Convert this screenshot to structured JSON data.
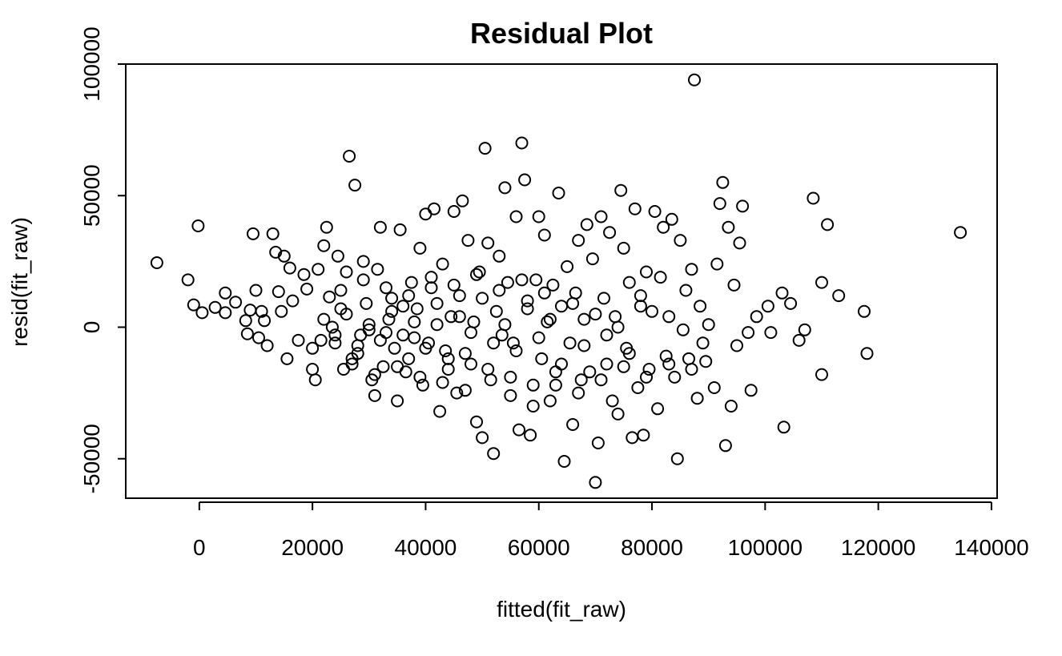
{
  "chart_data": {
    "type": "scatter",
    "title": "Residual Plot",
    "xlabel": "fitted(fit_raw)",
    "ylabel": "resid(fit_raw)",
    "xlim": [
      -13000,
      141000
    ],
    "ylim": [
      -65000,
      100000
    ],
    "xticks": [
      0,
      20000,
      40000,
      60000,
      80000,
      100000,
      120000,
      140000
    ],
    "xtick_labels": [
      "0",
      "20000",
      "40000",
      "60000",
      "80000",
      "100000",
      "120000",
      "140000"
    ],
    "yticks": [
      -50000,
      0,
      50000,
      100000
    ],
    "ytick_labels": [
      "-50000",
      "0",
      "50000",
      "100000"
    ],
    "grid": false,
    "marker": "open-circle",
    "points": [
      [
        -7500,
        24500
      ],
      [
        -2000,
        18000
      ],
      [
        -1000,
        8500
      ],
      [
        -200,
        38500
      ],
      [
        500,
        5500
      ],
      [
        2800,
        7500
      ],
      [
        4600,
        13000
      ],
      [
        4600,
        5500
      ],
      [
        6400,
        9500
      ],
      [
        8200,
        2500
      ],
      [
        8500,
        -2500
      ],
      [
        9000,
        6500
      ],
      [
        9500,
        35500
      ],
      [
        10000,
        14000
      ],
      [
        10500,
        -4000
      ],
      [
        11000,
        6000
      ],
      [
        11500,
        2500
      ],
      [
        12000,
        -7000
      ],
      [
        13000,
        35500
      ],
      [
        13500,
        28500
      ],
      [
        14000,
        13500
      ],
      [
        14500,
        6000
      ],
      [
        15000,
        27000
      ],
      [
        15500,
        -12000
      ],
      [
        16000,
        22500
      ],
      [
        16500,
        10000
      ],
      [
        17500,
        -5000
      ],
      [
        18500,
        20000
      ],
      [
        19000,
        14500
      ],
      [
        20000,
        -16000
      ],
      [
        20500,
        -20000
      ],
      [
        21000,
        22000
      ],
      [
        21500,
        -5000
      ],
      [
        22000,
        31000
      ],
      [
        22500,
        38000
      ],
      [
        23000,
        11500
      ],
      [
        23500,
        0
      ],
      [
        24000,
        -3000
      ],
      [
        24500,
        27000
      ],
      [
        25000,
        7000
      ],
      [
        25500,
        -16000
      ],
      [
        26000,
        21000
      ],
      [
        26500,
        65000
      ],
      [
        27000,
        -12000
      ],
      [
        27500,
        54000
      ],
      [
        28000,
        -7000
      ],
      [
        28500,
        -3000
      ],
      [
        29000,
        25000
      ],
      [
        29500,
        9000
      ],
      [
        30000,
        1000
      ],
      [
        30500,
        -20000
      ],
      [
        31000,
        -26000
      ],
      [
        31500,
        22000
      ],
      [
        32000,
        38000
      ],
      [
        32500,
        -15000
      ],
      [
        33000,
        -2000
      ],
      [
        33500,
        3000
      ],
      [
        34000,
        11000
      ],
      [
        34500,
        -8000
      ],
      [
        35000,
        -28000
      ],
      [
        35500,
        37000
      ],
      [
        36000,
        8000
      ],
      [
        36500,
        -17000
      ],
      [
        37000,
        -12000
      ],
      [
        37500,
        17000
      ],
      [
        38000,
        -4000
      ],
      [
        38500,
        7000
      ],
      [
        39000,
        30000
      ],
      [
        39500,
        -22000
      ],
      [
        40000,
        43000
      ],
      [
        40500,
        -6000
      ],
      [
        41000,
        15000
      ],
      [
        41500,
        45000
      ],
      [
        42000,
        1000
      ],
      [
        42500,
        -32000
      ],
      [
        43000,
        24000
      ],
      [
        43500,
        -9000
      ],
      [
        44000,
        -16000
      ],
      [
        44500,
        4000
      ],
      [
        45000,
        44000
      ],
      [
        45500,
        -25000
      ],
      [
        46000,
        12000
      ],
      [
        46500,
        48000
      ],
      [
        47000,
        -10000
      ],
      [
        47500,
        33000
      ],
      [
        48000,
        -14000
      ],
      [
        48500,
        2000
      ],
      [
        49000,
        -36000
      ],
      [
        49500,
        21000
      ],
      [
        50000,
        -42000
      ],
      [
        50500,
        68000
      ],
      [
        51000,
        32000
      ],
      [
        51500,
        -20000
      ],
      [
        52000,
        -48000
      ],
      [
        52500,
        6000
      ],
      [
        53000,
        27000
      ],
      [
        53500,
        -3000
      ],
      [
        54000,
        53000
      ],
      [
        54500,
        17000
      ],
      [
        55000,
        -26000
      ],
      [
        55500,
        -6000
      ],
      [
        56000,
        42000
      ],
      [
        56500,
        -39000
      ],
      [
        57000,
        70000
      ],
      [
        57500,
        56000
      ],
      [
        58000,
        10000
      ],
      [
        58500,
        -41000
      ],
      [
        59000,
        -30000
      ],
      [
        59500,
        18000
      ],
      [
        60000,
        42000
      ],
      [
        60500,
        -12000
      ],
      [
        61000,
        35000
      ],
      [
        61500,
        2000
      ],
      [
        62000,
        -28000
      ],
      [
        62500,
        16000
      ],
      [
        63000,
        -22000
      ],
      [
        63500,
        51000
      ],
      [
        64000,
        8000
      ],
      [
        64500,
        -51000
      ],
      [
        65000,
        23000
      ],
      [
        65500,
        -6000
      ],
      [
        66000,
        -37000
      ],
      [
        66500,
        13000
      ],
      [
        67000,
        33000
      ],
      [
        67500,
        -20000
      ],
      [
        68000,
        3000
      ],
      [
        68500,
        39000
      ],
      [
        69000,
        -17000
      ],
      [
        69500,
        26000
      ],
      [
        70000,
        -59000
      ],
      [
        70500,
        -44000
      ],
      [
        71000,
        42000
      ],
      [
        71500,
        11000
      ],
      [
        72000,
        -14000
      ],
      [
        72500,
        36000
      ],
      [
        73000,
        -28000
      ],
      [
        73500,
        4000
      ],
      [
        74000,
        -33000
      ],
      [
        74500,
        52000
      ],
      [
        75000,
        30000
      ],
      [
        75500,
        -8000
      ],
      [
        76000,
        17000
      ],
      [
        76500,
        -42000
      ],
      [
        77000,
        45000
      ],
      [
        77500,
        -23000
      ],
      [
        78000,
        8000
      ],
      [
        78500,
        -41000
      ],
      [
        79000,
        21000
      ],
      [
        79500,
        -16000
      ],
      [
        80000,
        6000
      ],
      [
        80500,
        44000
      ],
      [
        81000,
        -31000
      ],
      [
        81500,
        19000
      ],
      [
        82000,
        38000
      ],
      [
        82500,
        -11000
      ],
      [
        83000,
        4000
      ],
      [
        83500,
        41000
      ],
      [
        84000,
        -19000
      ],
      [
        84500,
        -50000
      ],
      [
        85000,
        33000
      ],
      [
        85500,
        -1000
      ],
      [
        86000,
        14000
      ],
      [
        86500,
        -12000
      ],
      [
        87000,
        22000
      ],
      [
        87500,
        94000
      ],
      [
        88000,
        -27000
      ],
      [
        88500,
        8000
      ],
      [
        89000,
        -6000
      ],
      [
        89500,
        -13000
      ],
      [
        90000,
        1000
      ],
      [
        91000,
        -23000
      ],
      [
        91500,
        24000
      ],
      [
        92000,
        47000
      ],
      [
        92500,
        55000
      ],
      [
        93000,
        -45000
      ],
      [
        93500,
        38000
      ],
      [
        94000,
        -30000
      ],
      [
        94500,
        16000
      ],
      [
        95000,
        -7000
      ],
      [
        95500,
        32000
      ],
      [
        96000,
        46000
      ],
      [
        97000,
        -2000
      ],
      [
        97500,
        -24000
      ],
      [
        98500,
        4000
      ],
      [
        100500,
        8000
      ],
      [
        101000,
        -2000
      ],
      [
        103000,
        13000
      ],
      [
        103300,
        -38000
      ],
      [
        104500,
        9000
      ],
      [
        106000,
        -5000
      ],
      [
        107000,
        -1000
      ],
      [
        108500,
        49000
      ],
      [
        110000,
        17000
      ],
      [
        110000,
        -18000
      ],
      [
        111000,
        39000
      ],
      [
        113000,
        12000
      ],
      [
        117500,
        6000
      ],
      [
        118000,
        -10000
      ],
      [
        134500,
        36000
      ],
      [
        20000,
        -8000
      ],
      [
        24000,
        -6000
      ],
      [
        28000,
        -10000
      ],
      [
        32000,
        -5000
      ],
      [
        36000,
        -3000
      ],
      [
        40000,
        -8000
      ],
      [
        44000,
        -12000
      ],
      [
        48000,
        -2000
      ],
      [
        52000,
        -6000
      ],
      [
        56000,
        -9000
      ],
      [
        60000,
        -4000
      ],
      [
        64000,
        -14000
      ],
      [
        68000,
        -7000
      ],
      [
        72000,
        -3000
      ],
      [
        76000,
        -10000
      ],
      [
        22000,
        3000
      ],
      [
        26000,
        5000
      ],
      [
        30000,
        -1000
      ],
      [
        34000,
        6000
      ],
      [
        38000,
        2000
      ],
      [
        42000,
        9000
      ],
      [
        46000,
        4000
      ],
      [
        50000,
        11000
      ],
      [
        54000,
        1000
      ],
      [
        58000,
        7000
      ],
      [
        62000,
        3000
      ],
      [
        66000,
        9000
      ],
      [
        70000,
        5000
      ],
      [
        74000,
        0
      ],
      [
        78000,
        12000
      ],
      [
        25000,
        14000
      ],
      [
        29000,
        18000
      ],
      [
        33000,
        15000
      ],
      [
        37000,
        12000
      ],
      [
        41000,
        19000
      ],
      [
        45000,
        16000
      ],
      [
        49000,
        20000
      ],
      [
        53000,
        14000
      ],
      [
        57000,
        18000
      ],
      [
        61000,
        13000
      ],
      [
        27000,
        -14000
      ],
      [
        31000,
        -18000
      ],
      [
        35000,
        -15000
      ],
      [
        39000,
        -19000
      ],
      [
        43000,
        -21000
      ],
      [
        47000,
        -24000
      ],
      [
        51000,
        -16000
      ],
      [
        55000,
        -19000
      ],
      [
        59000,
        -22000
      ],
      [
        63000,
        -17000
      ],
      [
        67000,
        -25000
      ],
      [
        71000,
        -20000
      ],
      [
        75000,
        -15000
      ],
      [
        79000,
        -19000
      ],
      [
        83000,
        -14000
      ],
      [
        87000,
        -16000
      ]
    ]
  }
}
